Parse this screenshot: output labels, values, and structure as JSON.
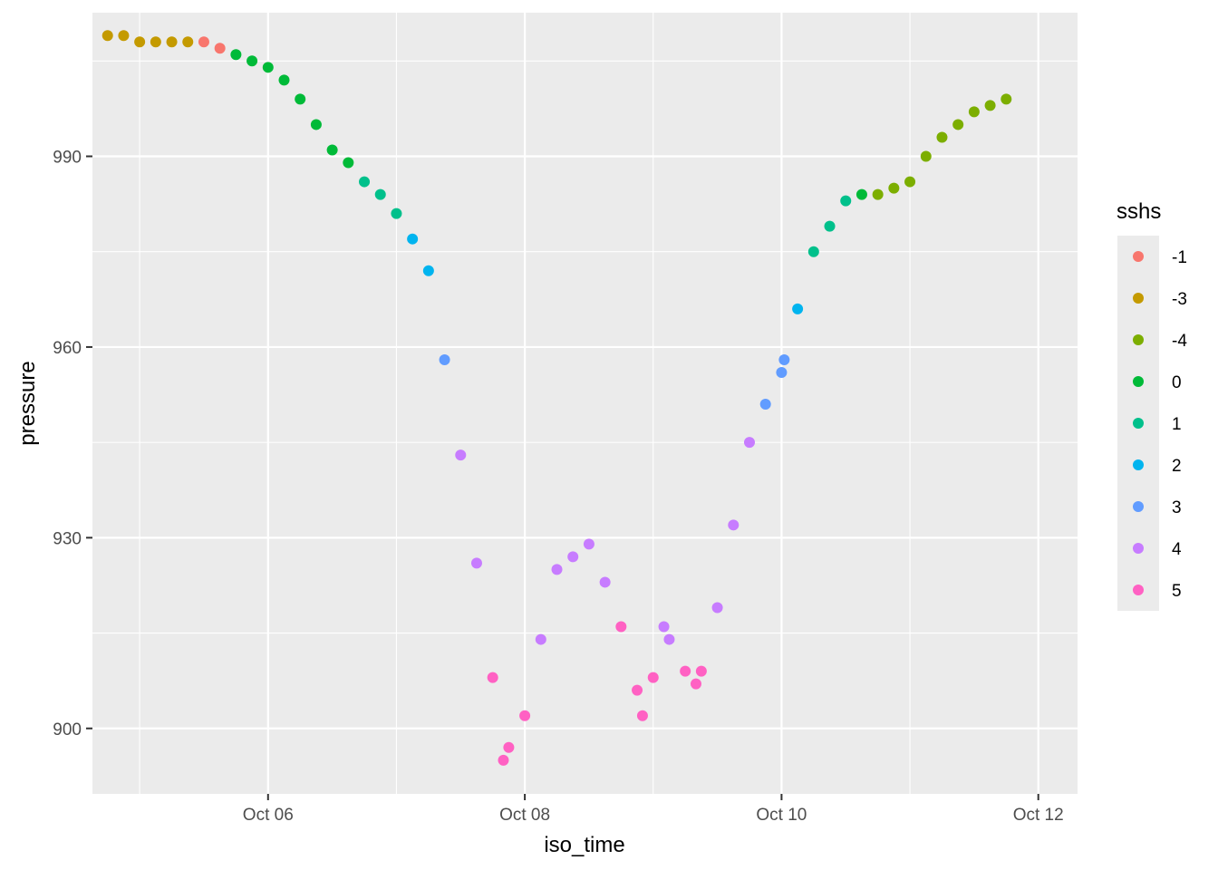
{
  "chart_data": {
    "type": "scatter",
    "xlabel": "iso_time",
    "ylabel": "pressure",
    "x_unit": "date",
    "xlim": [
      "2023-10-04 15:10",
      "2023-10-12 07:20"
    ],
    "ylim": [
      889.7,
      1012.6
    ],
    "x_ticks": [
      {
        "value": "2023-10-06 00:00",
        "label": "Oct 06"
      },
      {
        "value": "2023-10-08 00:00",
        "label": "Oct 08"
      },
      {
        "value": "2023-10-10 00:00",
        "label": "Oct 10"
      },
      {
        "value": "2023-10-12 00:00",
        "label": "Oct 12"
      }
    ],
    "y_ticks": [
      900,
      930,
      960,
      990
    ],
    "grid": true,
    "legend": {
      "title": "sshs",
      "position": "right",
      "entries": [
        {
          "label": "-1",
          "color": "#F8766D"
        },
        {
          "label": "-3",
          "color": "#C49A00"
        },
        {
          "label": "-4",
          "color": "#7CAE00"
        },
        {
          "label": "0",
          "color": "#00BA38"
        },
        {
          "label": "1",
          "color": "#00C08B"
        },
        {
          "label": "2",
          "color": "#00B4EF"
        },
        {
          "label": "3",
          "color": "#619CFF"
        },
        {
          "label": "4",
          "color": "#C77CFF"
        },
        {
          "label": "5",
          "color": "#FF61C3"
        }
      ]
    },
    "series": [
      {
        "name": "-3",
        "points": [
          {
            "x": "2023-10-04 18:00",
            "y": 1009
          },
          {
            "x": "2023-10-04 21:00",
            "y": 1009
          },
          {
            "x": "2023-10-05 00:00",
            "y": 1008
          },
          {
            "x": "2023-10-05 03:00",
            "y": 1008
          },
          {
            "x": "2023-10-05 06:00",
            "y": 1008
          },
          {
            "x": "2023-10-05 09:00",
            "y": 1008
          }
        ]
      },
      {
        "name": "-1",
        "points": [
          {
            "x": "2023-10-05 12:00",
            "y": 1008
          },
          {
            "x": "2023-10-05 15:00",
            "y": 1007
          }
        ]
      },
      {
        "name": "0",
        "points": [
          {
            "x": "2023-10-05 18:00",
            "y": 1006
          },
          {
            "x": "2023-10-05 21:00",
            "y": 1005
          },
          {
            "x": "2023-10-06 00:00",
            "y": 1004
          },
          {
            "x": "2023-10-06 03:00",
            "y": 1002
          },
          {
            "x": "2023-10-06 06:00",
            "y": 999
          },
          {
            "x": "2023-10-06 09:00",
            "y": 995
          },
          {
            "x": "2023-10-06 12:00",
            "y": 991
          },
          {
            "x": "2023-10-06 15:00",
            "y": 989
          },
          {
            "x": "2023-10-10 15:00",
            "y": 984
          }
        ]
      },
      {
        "name": "1",
        "points": [
          {
            "x": "2023-10-06 18:00",
            "y": 986
          },
          {
            "x": "2023-10-06 21:00",
            "y": 984
          },
          {
            "x": "2023-10-07 00:00",
            "y": 981
          },
          {
            "x": "2023-10-10 06:00",
            "y": 975
          },
          {
            "x": "2023-10-10 09:00",
            "y": 979
          },
          {
            "x": "2023-10-10 12:00",
            "y": 983
          }
        ]
      },
      {
        "name": "2",
        "points": [
          {
            "x": "2023-10-07 03:00",
            "y": 977
          },
          {
            "x": "2023-10-07 06:00",
            "y": 972
          },
          {
            "x": "2023-10-10 03:00",
            "y": 966
          }
        ]
      },
      {
        "name": "3",
        "points": [
          {
            "x": "2023-10-07 09:00",
            "y": 958
          },
          {
            "x": "2023-10-09 21:00",
            "y": 951
          },
          {
            "x": "2023-10-10 00:00",
            "y": 956
          },
          {
            "x": "2023-10-10 00:30",
            "y": 958
          }
        ]
      },
      {
        "name": "4",
        "points": [
          {
            "x": "2023-10-07 12:00",
            "y": 943
          },
          {
            "x": "2023-10-07 15:00",
            "y": 926
          },
          {
            "x": "2023-10-08 03:00",
            "y": 914
          },
          {
            "x": "2023-10-08 06:00",
            "y": 925
          },
          {
            "x": "2023-10-08 09:00",
            "y": 927
          },
          {
            "x": "2023-10-08 12:00",
            "y": 929
          },
          {
            "x": "2023-10-08 15:00",
            "y": 923
          },
          {
            "x": "2023-10-09 02:00",
            "y": 916
          },
          {
            "x": "2023-10-09 03:00",
            "y": 914
          },
          {
            "x": "2023-10-09 12:00",
            "y": 919
          },
          {
            "x": "2023-10-09 15:00",
            "y": 932
          },
          {
            "x": "2023-10-09 18:00",
            "y": 945
          }
        ]
      },
      {
        "name": "5",
        "points": [
          {
            "x": "2023-10-07 18:00",
            "y": 908
          },
          {
            "x": "2023-10-07 20:00",
            "y": 895
          },
          {
            "x": "2023-10-07 21:00",
            "y": 897
          },
          {
            "x": "2023-10-08 00:00",
            "y": 902
          },
          {
            "x": "2023-10-08 18:00",
            "y": 916
          },
          {
            "x": "2023-10-08 21:00",
            "y": 906
          },
          {
            "x": "2023-10-08 22:00",
            "y": 902
          },
          {
            "x": "2023-10-09 00:00",
            "y": 908
          },
          {
            "x": "2023-10-09 06:00",
            "y": 909
          },
          {
            "x": "2023-10-09 08:00",
            "y": 907
          },
          {
            "x": "2023-10-09 09:00",
            "y": 909
          }
        ]
      },
      {
        "name": "-4",
        "points": [
          {
            "x": "2023-10-10 18:00",
            "y": 984
          },
          {
            "x": "2023-10-10 21:00",
            "y": 985
          },
          {
            "x": "2023-10-11 00:00",
            "y": 986
          },
          {
            "x": "2023-10-11 03:00",
            "y": 990
          },
          {
            "x": "2023-10-11 06:00",
            "y": 993
          },
          {
            "x": "2023-10-11 09:00",
            "y": 995
          },
          {
            "x": "2023-10-11 12:00",
            "y": 997
          },
          {
            "x": "2023-10-11 15:00",
            "y": 998
          },
          {
            "x": "2023-10-11 18:00",
            "y": 999
          }
        ]
      }
    ]
  }
}
